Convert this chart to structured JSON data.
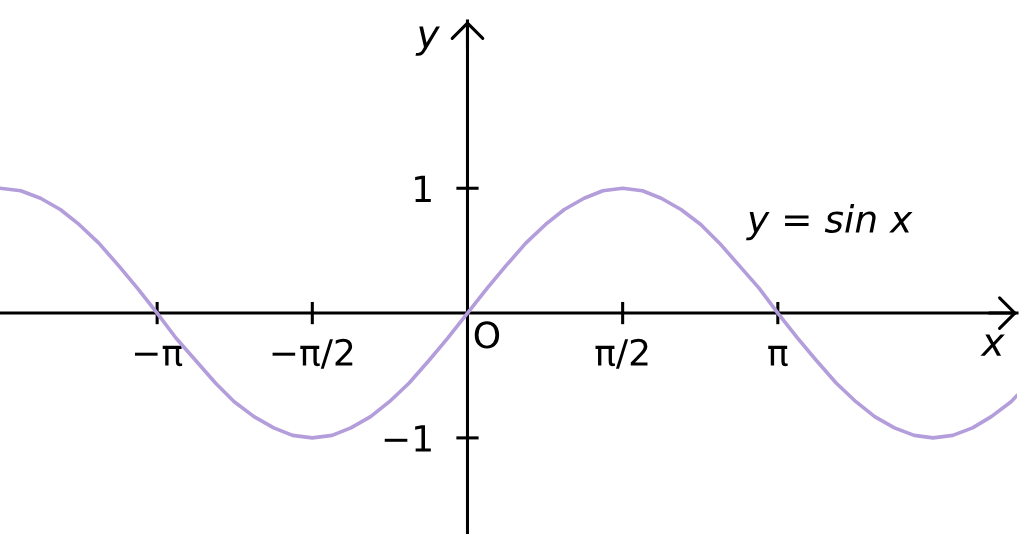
{
  "chart_data": {
    "type": "line",
    "xlabel": "x",
    "ylabel": "y",
    "x": [
      -4.73,
      -4.52,
      -4.32,
      -4.12,
      -3.93,
      -3.73,
      -3.53,
      -3.34,
      -3.14,
      -2.95,
      -2.75,
      -2.55,
      -2.36,
      -2.16,
      -1.96,
      -1.77,
      -1.57,
      -1.37,
      -1.18,
      -0.98,
      -0.79,
      -0.59,
      -0.39,
      -0.2,
      0,
      0.2,
      0.39,
      0.59,
      0.79,
      0.98,
      1.18,
      1.37,
      1.57,
      1.77,
      1.96,
      2.16,
      2.36,
      2.55,
      2.75,
      2.95,
      3.14,
      3.34,
      3.53,
      3.73,
      3.93,
      4.12,
      4.32,
      4.52,
      4.71,
      4.91,
      5.11,
      5.3,
      5.5,
      5.56
    ],
    "series": [
      {
        "name": "y = sin x",
        "color": "#b39ddb",
        "values": [
          1.0,
          0.98,
          0.92,
          0.83,
          0.71,
          0.56,
          0.38,
          0.2,
          0,
          -0.2,
          -0.38,
          -0.56,
          -0.71,
          -0.83,
          -0.92,
          -0.98,
          -1.0,
          -0.98,
          -0.92,
          -0.83,
          -0.71,
          -0.56,
          -0.38,
          -0.2,
          0,
          0.2,
          0.38,
          0.56,
          0.71,
          0.83,
          0.92,
          0.98,
          1.0,
          0.98,
          0.92,
          0.83,
          0.71,
          0.56,
          0.38,
          0.2,
          0,
          -0.2,
          -0.38,
          -0.56,
          -0.71,
          -0.83,
          -0.92,
          -0.98,
          -1.0,
          -0.98,
          -0.92,
          -0.83,
          -0.71,
          -0.66
        ]
      }
    ],
    "xlim": [
      -4.73,
      5.56
    ],
    "ylim": [
      -1.77,
      2.34
    ],
    "xticks": [
      {
        "value": -3.14,
        "label": "−π"
      },
      {
        "value": -1.57,
        "label": "−π/2"
      },
      {
        "value": 1.57,
        "label": "π/2"
      },
      {
        "value": 3.14,
        "label": "π"
      }
    ],
    "yticks": [
      {
        "value": -1,
        "label": "−1"
      },
      1
    ],
    "annotations": [
      {
        "text": "O",
        "x": 0,
        "y": 0
      }
    ],
    "line_style": "solid",
    "grid": false,
    "legend": false
  }
}
